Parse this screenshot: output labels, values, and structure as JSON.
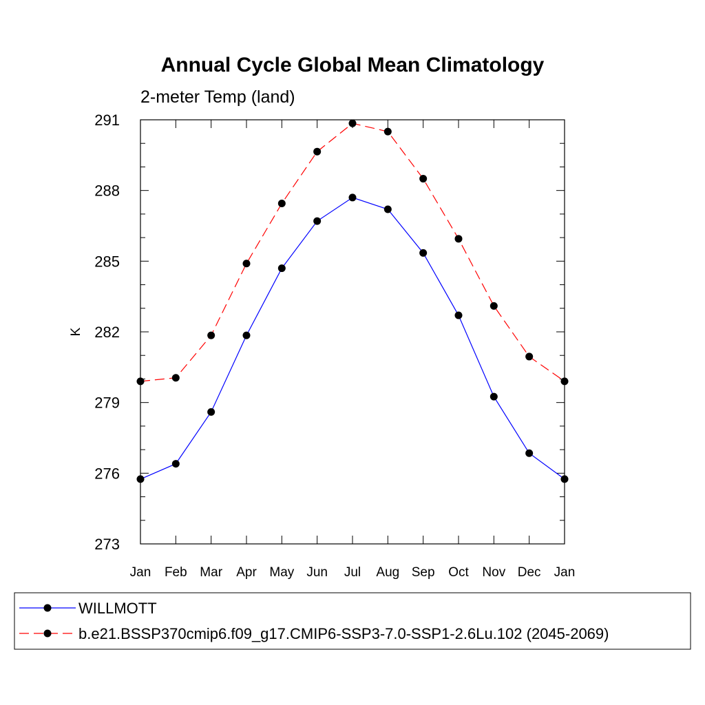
{
  "chart_data": {
    "type": "line",
    "title": "Annual Cycle Global Mean Climatology",
    "subtitle": "2-meter Temp (land)",
    "ylabel": "K",
    "xlabel": "",
    "categories": [
      "Jan",
      "Feb",
      "Mar",
      "Apr",
      "May",
      "Jun",
      "Jul",
      "Aug",
      "Sep",
      "Oct",
      "Nov",
      "Dec",
      "Jan"
    ],
    "ylim": [
      273,
      291
    ],
    "yticks": [
      273,
      276,
      279,
      282,
      285,
      288,
      291
    ],
    "grid": false,
    "legend_position": "bottom",
    "series": [
      {
        "name": "WILLMOTT",
        "color": "#0000ff",
        "dash": "solid",
        "marker": "filled-circle",
        "values": [
          275.75,
          276.4,
          278.6,
          281.85,
          284.7,
          286.7,
          287.7,
          287.2,
          285.35,
          282.7,
          279.25,
          276.85,
          275.75
        ]
      },
      {
        "name": "b.e21.BSSP370cmip6.f09_g17.CMIP6-SSP3-7.0-SSP1-2.6Lu.102 (2045-2069)",
        "color": "#ff0000",
        "dash": "dashed",
        "marker": "filled-circle",
        "values": [
          279.9,
          280.05,
          281.85,
          284.9,
          287.45,
          289.65,
          290.85,
          290.5,
          288.5,
          285.95,
          283.1,
          280.95,
          279.9
        ]
      }
    ]
  }
}
